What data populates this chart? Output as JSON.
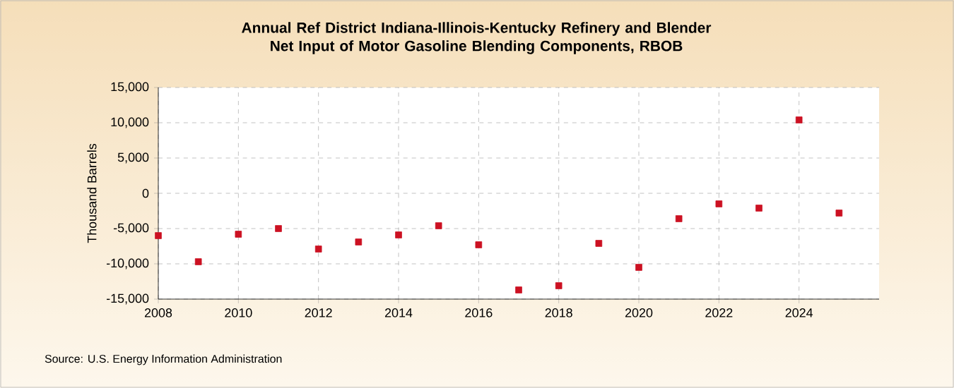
{
  "chart_data": {
    "type": "scatter",
    "title": "Annual Ref District Indiana-Illinois-Kentucky Refinery and Blender Net Input of Motor Gasoline Blending Components, RBOB",
    "ylabel": "Thousand Barrels",
    "x": [
      2008,
      2009,
      2010,
      2011,
      2012,
      2013,
      2014,
      2015,
      2016,
      2017,
      2018,
      2019,
      2020,
      2021,
      2022,
      2023,
      2024,
      2025
    ],
    "series": [
      {
        "color": "#cc1122",
        "values": [
          -6000,
          -9700,
          -5800,
          -5000,
          -7900,
          -6900,
          -5900,
          -4600,
          -7300,
          -13700,
          -13100,
          -7100,
          -10500,
          -3600,
          -1500,
          -2100,
          10400,
          -2800
        ]
      }
    ],
    "xlim": [
      2008,
      2026
    ],
    "xticks": [
      2008,
      2010,
      2012,
      2014,
      2016,
      2018,
      2020,
      2022,
      2024
    ],
    "ylim": [
      -15000,
      15000
    ],
    "yticks": [
      {
        "value": -15000,
        "label": "-15,000"
      },
      {
        "value": -10000,
        "label": "-10,000"
      },
      {
        "value": -5000,
        "label": "-5,000"
      },
      {
        "value": 0,
        "label": "0"
      },
      {
        "value": 5000,
        "label": "5,000"
      },
      {
        "value": 10000,
        "label": "10,000"
      },
      {
        "value": 15000,
        "label": "15,000"
      }
    ],
    "grid": true,
    "marker": "square",
    "annotations": [
      "Source: U.S. Energy Information Administration"
    ]
  }
}
